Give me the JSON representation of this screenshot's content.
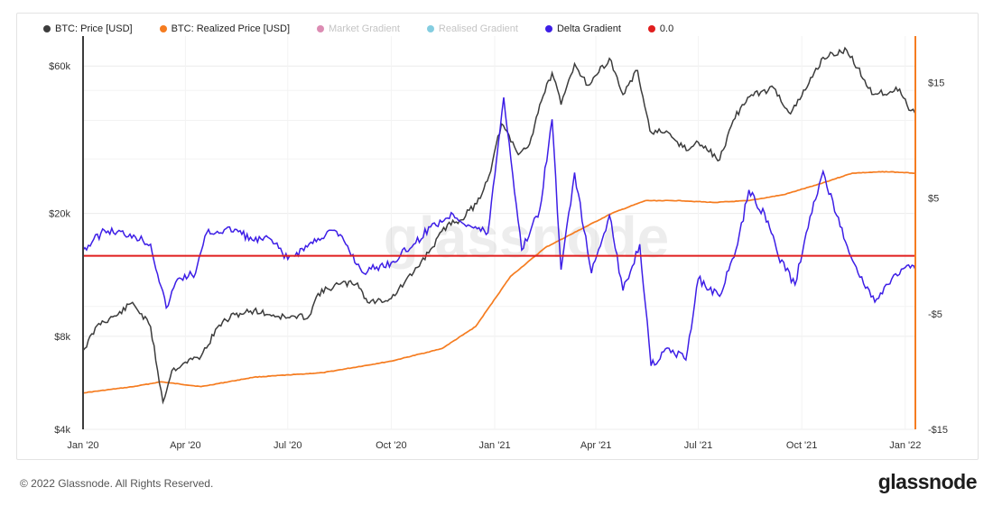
{
  "footer": {
    "copyright": "© 2022 Glassnode. All Rights Reserved.",
    "logo": "glassnode"
  },
  "watermark": "glassnode",
  "legend": [
    {
      "label": "BTC: Price [USD]",
      "color": "#3c3c3c",
      "faded": false
    },
    {
      "label": "BTC: Realized Price [USD]",
      "color": "#f57c20",
      "faded": false
    },
    {
      "label": "Market Gradient",
      "color": "#d0669a",
      "faded": true
    },
    {
      "label": "Realised Gradient",
      "color": "#5bbcd6",
      "faded": true
    },
    {
      "label": "Delta Gradient",
      "color": "#3d1ee6",
      "faded": false
    },
    {
      "label": "0.0",
      "color": "#e01e1e",
      "faded": false
    }
  ],
  "chart_data": {
    "type": "line",
    "x_range": [
      "2020-01-01",
      "2022-01-10"
    ],
    "x_ticks": [
      "Jan '20",
      "Apr '20",
      "Jul '20",
      "Oct '20",
      "Jan '21",
      "Apr '21",
      "Jul '21",
      "Oct '21",
      "Jan '22"
    ],
    "y_left": {
      "scale": "log",
      "range": [
        4000,
        75000
      ],
      "ticks": [
        {
          "value": 60000,
          "label": "$60k"
        },
        {
          "value": 20000,
          "label": "$20k"
        },
        {
          "value": 8000,
          "label": "$8k"
        },
        {
          "value": 4000,
          "label": "$4k"
        }
      ]
    },
    "y_right": {
      "scale": "linear",
      "range": [
        -15,
        19
      ],
      "ticks": [
        {
          "value": 15,
          "label": "$15"
        },
        {
          "value": 5,
          "label": "$5"
        },
        {
          "value": -5,
          "label": "-$5"
        },
        {
          "value": -15,
          "label": "-$15"
        }
      ]
    },
    "colors": {
      "price": "#3c3c3c",
      "realized": "#f57c20",
      "delta": "#3d1ee6",
      "zero": "#e01e1e",
      "grid": "#ececec"
    },
    "series": [
      {
        "name": "BTC: Price [USD]",
        "axis": "left",
        "points": [
          [
            "2020-01-01",
            7200
          ],
          [
            "2020-01-15",
            8800
          ],
          [
            "2020-02-01",
            9400
          ],
          [
            "2020-02-14",
            10300
          ],
          [
            "2020-03-01",
            8600
          ],
          [
            "2020-03-12",
            4900
          ],
          [
            "2020-03-20",
            6200
          ],
          [
            "2020-04-01",
            6600
          ],
          [
            "2020-04-15",
            6900
          ],
          [
            "2020-05-01",
            8700
          ],
          [
            "2020-05-15",
            9400
          ],
          [
            "2020-06-01",
            9700
          ],
          [
            "2020-06-15",
            9400
          ],
          [
            "2020-07-01",
            9200
          ],
          [
            "2020-07-20",
            9300
          ],
          [
            "2020-07-28",
            11000
          ],
          [
            "2020-08-15",
            11800
          ],
          [
            "2020-09-01",
            11900
          ],
          [
            "2020-09-10",
            10300
          ],
          [
            "2020-10-01",
            10600
          ],
          [
            "2020-10-21",
            12900
          ],
          [
            "2020-11-05",
            15300
          ],
          [
            "2020-11-20",
            18400
          ],
          [
            "2020-12-01",
            19000
          ],
          [
            "2020-12-16",
            21500
          ],
          [
            "2020-12-27",
            26500
          ],
          [
            "2021-01-07",
            39000
          ],
          [
            "2021-01-22",
            31000
          ],
          [
            "2021-02-01",
            33500
          ],
          [
            "2021-02-10",
            45000
          ],
          [
            "2021-02-21",
            57000
          ],
          [
            "2021-03-01",
            45000
          ],
          [
            "2021-03-13",
            61000
          ],
          [
            "2021-03-25",
            52000
          ],
          [
            "2021-04-13",
            63500
          ],
          [
            "2021-04-25",
            48500
          ],
          [
            "2021-05-08",
            58000
          ],
          [
            "2021-05-19",
            37000
          ],
          [
            "2021-06-01",
            36500
          ],
          [
            "2021-06-22",
            32000
          ],
          [
            "2021-07-01",
            34000
          ],
          [
            "2021-07-20",
            29800
          ],
          [
            "2021-08-01",
            40000
          ],
          [
            "2021-08-14",
            47500
          ],
          [
            "2021-09-06",
            51000
          ],
          [
            "2021-09-21",
            42000
          ],
          [
            "2021-10-01",
            48000
          ],
          [
            "2021-10-20",
            64000
          ],
          [
            "2021-11-10",
            67500
          ],
          [
            "2021-11-26",
            54000
          ],
          [
            "2021-12-04",
            48500
          ],
          [
            "2021-12-27",
            50500
          ],
          [
            "2022-01-06",
            43000
          ],
          [
            "2022-01-10",
            42000
          ]
        ]
      },
      {
        "name": "BTC: Realized Price [USD]",
        "axis": "left",
        "points": [
          [
            "2020-01-01",
            5250
          ],
          [
            "2020-02-15",
            5500
          ],
          [
            "2020-03-10",
            5700
          ],
          [
            "2020-04-15",
            5500
          ],
          [
            "2020-06-01",
            5900
          ],
          [
            "2020-08-01",
            6100
          ],
          [
            "2020-10-01",
            6650
          ],
          [
            "2020-11-15",
            7300
          ],
          [
            "2020-12-15",
            8600
          ],
          [
            "2021-01-15",
            12500
          ],
          [
            "2021-02-15",
            15500
          ],
          [
            "2021-03-15",
            17500
          ],
          [
            "2021-04-15",
            20000
          ],
          [
            "2021-05-15",
            22000
          ],
          [
            "2021-06-15",
            22000
          ],
          [
            "2021-07-15",
            21700
          ],
          [
            "2021-08-15",
            22000
          ],
          [
            "2021-09-15",
            23000
          ],
          [
            "2021-10-15",
            24800
          ],
          [
            "2021-11-15",
            27000
          ],
          [
            "2021-12-15",
            27300
          ],
          [
            "2022-01-10",
            27000
          ]
        ]
      },
      {
        "name": "Delta Gradient",
        "axis": "right",
        "points": [
          [
            "2020-01-01",
            0.5
          ],
          [
            "2020-01-20",
            2.2
          ],
          [
            "2020-02-15",
            1.8
          ],
          [
            "2020-03-01",
            1
          ],
          [
            "2020-03-15",
            -4.5
          ],
          [
            "2020-03-25",
            -2
          ],
          [
            "2020-04-10",
            -1.5
          ],
          [
            "2020-04-20",
            2
          ],
          [
            "2020-05-15",
            2.3
          ],
          [
            "2020-06-01",
            1.3
          ],
          [
            "2020-06-15",
            1.5
          ],
          [
            "2020-07-01",
            -0.3
          ],
          [
            "2020-07-28",
            1.5
          ],
          [
            "2020-08-10",
            2.2
          ],
          [
            "2020-08-20",
            1.3
          ],
          [
            "2020-09-05",
            -1.4
          ],
          [
            "2020-10-01",
            -0.6
          ],
          [
            "2020-10-21",
            1
          ],
          [
            "2020-11-05",
            2.5
          ],
          [
            "2020-11-25",
            3.6
          ],
          [
            "2020-12-10",
            2.6
          ],
          [
            "2020-12-26",
            2
          ],
          [
            "2021-01-09",
            13.7
          ],
          [
            "2021-01-25",
            0.5
          ],
          [
            "2021-02-10",
            4
          ],
          [
            "2021-02-21",
            11.8
          ],
          [
            "2021-03-01",
            -1.2
          ],
          [
            "2021-03-13",
            7.2
          ],
          [
            "2021-03-28",
            -1.5
          ],
          [
            "2021-04-13",
            3.5
          ],
          [
            "2021-04-25",
            -3
          ],
          [
            "2021-05-10",
            1
          ],
          [
            "2021-05-20",
            -9.5
          ],
          [
            "2021-06-05",
            -8
          ],
          [
            "2021-06-20",
            -9
          ],
          [
            "2021-07-01",
            -2
          ],
          [
            "2021-07-20",
            -3.5
          ],
          [
            "2021-08-05",
            1
          ],
          [
            "2021-08-15",
            5.7
          ],
          [
            "2021-09-01",
            3
          ],
          [
            "2021-09-10",
            0
          ],
          [
            "2021-09-25",
            -2.5
          ],
          [
            "2021-10-05",
            2
          ],
          [
            "2021-10-20",
            7.3
          ],
          [
            "2021-11-01",
            3.5
          ],
          [
            "2021-11-20",
            -1.5
          ],
          [
            "2021-12-05",
            -4
          ],
          [
            "2021-12-20",
            -2
          ],
          [
            "2022-01-01",
            -1
          ],
          [
            "2022-01-10",
            -1.2
          ]
        ]
      },
      {
        "name": "0.0",
        "axis": "right",
        "value": 0
      }
    ]
  }
}
